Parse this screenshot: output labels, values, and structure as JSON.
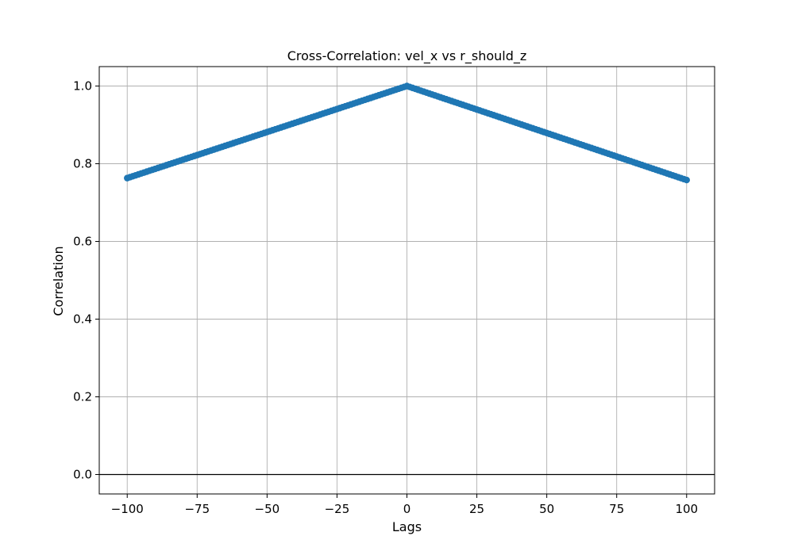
{
  "chart_data": {
    "type": "scatter",
    "title": "Cross-Correlation: vel_x vs r_should_z",
    "xlabel": "Lags",
    "ylabel": "Correlation",
    "xlim": [
      -110,
      110
    ],
    "ylim": [
      -0.05,
      1.05
    ],
    "x_ticks": [
      -100,
      -75,
      -50,
      -25,
      0,
      25,
      50,
      75,
      100
    ],
    "x_tick_labels": [
      "−100",
      "−75",
      "−50",
      "−25",
      "0",
      "25",
      "50",
      "75",
      "100"
    ],
    "y_ticks": [
      0.0,
      0.2,
      0.4,
      0.6,
      0.8,
      1.0
    ],
    "y_tick_labels": [
      "0.0",
      "0.2",
      "0.4",
      "0.6",
      "0.8",
      "1.0"
    ],
    "grid": true,
    "reference_line_y": 0,
    "series": [
      {
        "color": "#1f77b4",
        "marker": "circle",
        "connected": true,
        "x_start": -100,
        "x_end": 100,
        "x_step": 1,
        "peak_x": 0,
        "peak_y": 1.0,
        "y_at_x_start": 0.763,
        "y_at_x_end": 0.758
      }
    ]
  }
}
